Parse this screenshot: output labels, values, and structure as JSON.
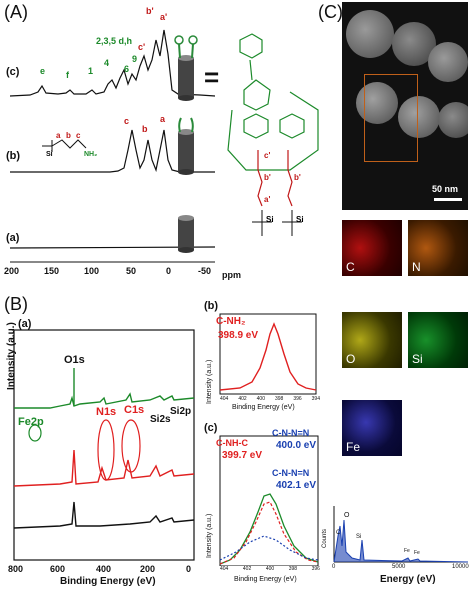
{
  "panelA": {
    "letter": "(A)",
    "ppm_label": "ppm",
    "xticks": [
      "200",
      "150",
      "100",
      "50",
      "0",
      "-50"
    ],
    "traces": [
      {
        "id": "c",
        "label": "(c)",
        "peaks": [
          "e",
          "f",
          "1",
          "4",
          "2,3,5 d,h",
          "6",
          "9",
          "c'",
          "b'",
          "a'"
        ]
      },
      {
        "id": "b",
        "label": "(b)",
        "peaks": [
          "c",
          "b",
          "a"
        ]
      },
      {
        "id": "a",
        "label": "(a)",
        "peaks": []
      }
    ],
    "equals_sign": "=",
    "trace_b_molecule": [
      "a",
      "b",
      "c",
      "NH₂",
      "Si",
      "O"
    ]
  },
  "panelB": {
    "letter": "(B)",
    "main": {
      "label": "(a)",
      "xlabel": "Binding Energy (eV)",
      "ylabel": "Intensity (a.u.)",
      "xticks": [
        "800",
        "600",
        "400",
        "200",
        "0"
      ],
      "peak_labels": [
        "Fe2p",
        "O1s",
        "N1s",
        "C1s",
        "Si2s",
        "Si2p"
      ]
    },
    "inset_b": {
      "label": "(b)",
      "title": "C-NH₂",
      "value": "398.9 eV",
      "xlabel": "Binding Energy (eV)",
      "ylabel": "Intensity (a.u.)",
      "xticks": [
        "404",
        "402",
        "400",
        "398",
        "396",
        "394"
      ]
    },
    "inset_c": {
      "label": "(c)",
      "t1": "C-NH-C",
      "v1": "399.7 eV",
      "t2": "C-N-N=N",
      "v2": "400.0 eV",
      "t3": "C-N-N=N",
      "v3": "402.1 eV",
      "xlabel": "Binding Energy (eV)",
      "ylabel": "Intensity (a.u.)",
      "xticks": [
        "404",
        "402",
        "400",
        "398",
        "396"
      ]
    }
  },
  "panelC": {
    "letter": "(C)",
    "scale_bar": "50 nm",
    "maps": [
      {
        "label": "C",
        "color": "#d01818"
      },
      {
        "label": "N",
        "color": "#d06a10"
      },
      {
        "label": "O",
        "color": "#d8d020"
      },
      {
        "label": "Si",
        "color": "#20a028"
      },
      {
        "label": "Fe",
        "color": "#3030c0"
      }
    ],
    "eds": {
      "ylabel": "Counts",
      "xlabel": "Energy (eV)",
      "xticks": [
        "0",
        "5000",
        "10000"
      ],
      "peaks": [
        "C",
        "O",
        "Si",
        "Fe",
        "Fe"
      ]
    }
  },
  "colors": {
    "red": "#e02020",
    "green": "#1c8a2a",
    "blue": "#1a40b0",
    "black": "#111111"
  }
}
